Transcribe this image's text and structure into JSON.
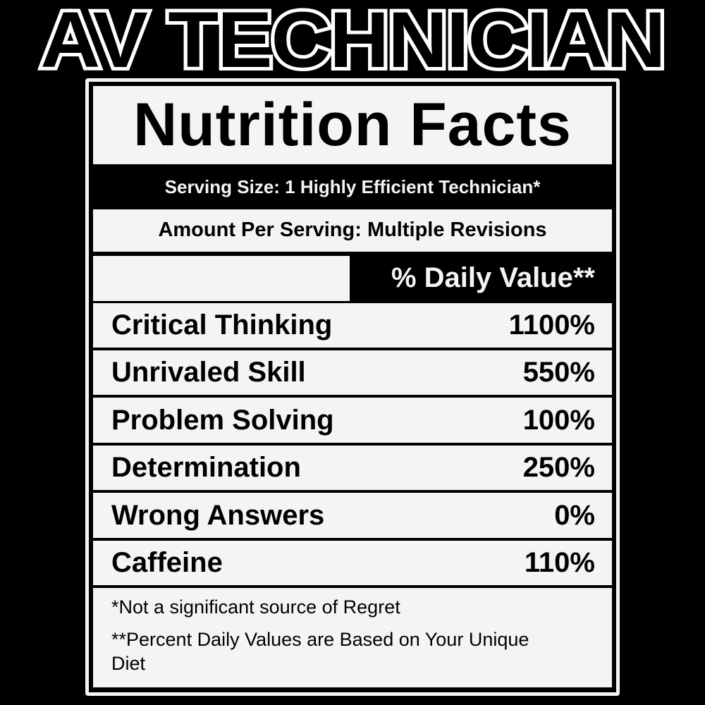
{
  "title": "AV TECHNICIAN",
  "label": {
    "heading": "Nutrition Facts",
    "serving_size": "Serving Size: 1 Highly Efficient Technician*",
    "amount_per_serving": "Amount Per Serving: Multiple Revisions",
    "daily_value_header": "% Daily Value**",
    "rows": [
      {
        "name": "Critical Thinking",
        "value": "1100%"
      },
      {
        "name": "Unrivaled Skill",
        "value": "550%"
      },
      {
        "name": "Problem Solving",
        "value": "100%"
      },
      {
        "name": "Determination",
        "value": "250%"
      },
      {
        "name": "Wrong Answers",
        "value": "0%"
      },
      {
        "name": "Caffeine",
        "value": "110%"
      }
    ],
    "footnotes": [
      "*Not a significant source of Regret",
      "**Percent Daily Values are Based on Your Unique Diet"
    ]
  },
  "colors": {
    "background": "#000000",
    "panel": "#f4f4f4",
    "text": "#000000"
  }
}
